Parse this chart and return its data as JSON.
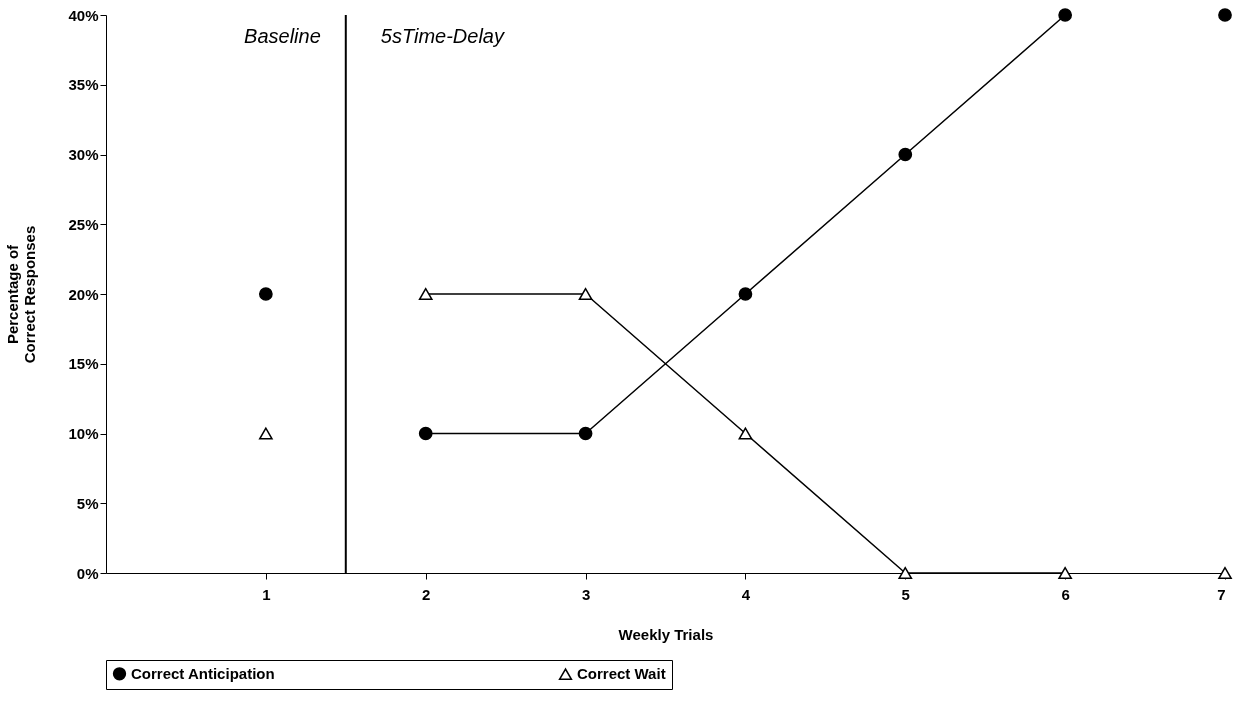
{
  "chart_data": {
    "type": "line",
    "xlabel": "Weekly Trials",
    "ylabel": "Percentage of Correct Responses",
    "xlim": [
      0,
      7
    ],
    "xticks": [
      1,
      2,
      3,
      4,
      5,
      6,
      7
    ],
    "ylim": [
      0,
      40
    ],
    "yticks": [
      {
        "value": 0,
        "label": "0%"
      },
      {
        "value": 5,
        "label": "5%"
      },
      {
        "value": 10,
        "label": "10%"
      },
      {
        "value": 15,
        "label": "15%"
      },
      {
        "value": 20,
        "label": "20%"
      },
      {
        "value": 25,
        "label": "25%"
      },
      {
        "value": 30,
        "label": "30%"
      },
      {
        "value": 35,
        "label": "35%"
      },
      {
        "value": 40,
        "label": "40%"
      }
    ],
    "series": [
      {
        "name": "Correct Anticipation",
        "color": "#000000",
        "marker": "circle",
        "x": [
          2,
          3,
          4,
          5,
          6
        ],
        "values": [
          10,
          10,
          20,
          30,
          40
        ]
      },
      {
        "name": "Correct Wait",
        "color": "#000000",
        "marker": "triangle",
        "x": [
          2,
          3,
          4,
          5,
          6
        ],
        "values": [
          20,
          20,
          10,
          0,
          0
        ]
      },
      {
        "type": "scatter",
        "color": "#000000",
        "marker": "circle",
        "x": [
          1,
          7
        ],
        "values": [
          20,
          40
        ]
      },
      {
        "type": "scatter",
        "color": "#000000",
        "marker": "triangle",
        "x": [
          1,
          7
        ],
        "values": [
          10,
          0
        ]
      }
    ],
    "ref_lines": [
      {
        "axis": "x",
        "value": 1.5,
        "color": "#000000",
        "line_style": "solid"
      }
    ],
    "annotations": [
      "Baseline",
      "5sTime-Delay"
    ],
    "grid": false,
    "legend": "bottom"
  }
}
